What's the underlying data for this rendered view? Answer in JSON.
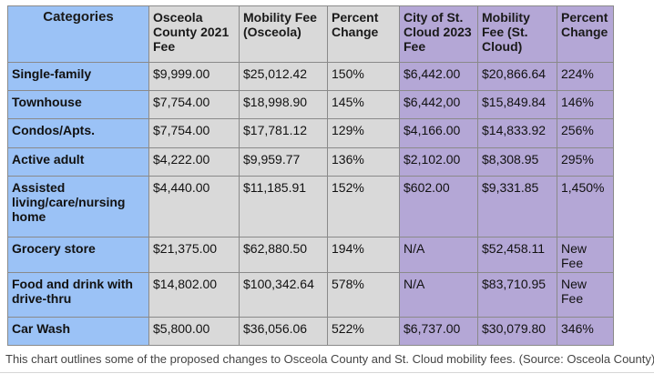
{
  "table": {
    "headers": [
      "Categories",
      "Osceola County 2021 Fee",
      "Mobility Fee (Osceola)",
      "Percent Change",
      "City of St. Cloud 2023 Fee",
      "Mobility Fee (St. Cloud)",
      "Percent Change"
    ],
    "rows": [
      [
        "Single-family",
        "$9,999.00",
        "$25,012.42",
        "150%",
        "$6,442.00",
        "$20,866.64",
        "224%"
      ],
      [
        "Townhouse",
        "$7,754.00",
        "$18,998.90",
        "145%",
        "$6,442,00",
        "$15,849.84",
        "146%"
      ],
      [
        "Condos/Apts.",
        "$7,754.00",
        "$17,781.12",
        "129%",
        "$4,166.00",
        "$14,833.92",
        "256%"
      ],
      [
        "Active adult",
        "$4,222.00",
        "$9,959.77",
        "136%",
        "$2,102.00",
        "$8,308.95",
        "295%"
      ],
      [
        "Assisted living/care/nursing home",
        "$4,440.00",
        "$11,185.91",
        "152%",
        "$602.00",
        "$9,331.85",
        "1,450%"
      ],
      [
        "Grocery store",
        "$21,375.00",
        "$62,880.50",
        "194%",
        "N/A",
        "$52,458.11",
        "New Fee"
      ],
      [
        "Food and drink with drive-thru",
        "$14,802.00",
        "$100,342.64",
        "578%",
        "N/A",
        "$83,710.95",
        "New Fee"
      ],
      [
        "Car Wash",
        "$5,800.00",
        "$36,056.06",
        "522%",
        "$6,737.00",
        "$30,079.80",
        "346%"
      ]
    ]
  },
  "caption": "This chart outlines some of the proposed changes to Osceola County and St. Cloud mobility fees. (Source: Osceola County)",
  "colors": {
    "category_column": "#9bc2f6",
    "osceola_columns": "#d9d9d9",
    "st_cloud_columns": "#b4a7d6"
  }
}
